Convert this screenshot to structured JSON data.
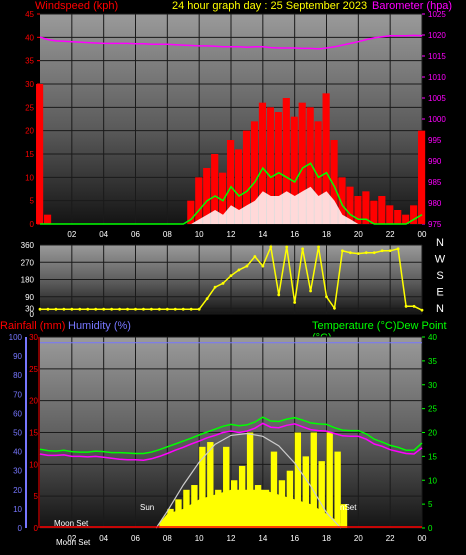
{
  "title": "24 hour graph day : 25 September 2023",
  "colors": {
    "wind": "#ff0000",
    "gust": "#00ff00",
    "avg": "#ffffff",
    "baro": "#ff00ff",
    "dir": "#ffff00",
    "rain": "#ff0000",
    "humidity": "#7777ff",
    "temp": "#00ff00",
    "dew": "#ff00ff",
    "sun": "#ffff00",
    "solar_max": "#cccccc",
    "compass": "#ffffff"
  },
  "chart_data": [
    {
      "type": "area",
      "id": "wind",
      "left_label": "Windspeed (kph)",
      "right_label": "Barometer (hpa)",
      "x_ticks": [
        "02",
        "04",
        "06",
        "08",
        "10",
        "12",
        "14",
        "16",
        "18",
        "20",
        "22",
        "00"
      ],
      "y_left_ticks": [
        0,
        5,
        10,
        15,
        20,
        25,
        30,
        35,
        40,
        45
      ],
      "y_left_range": [
        0,
        45
      ],
      "y_right_ticks": [
        975,
        980,
        985,
        990,
        995,
        1000,
        1005,
        1010,
        1015,
        1020,
        1025
      ],
      "y_right_range": [
        975,
        1025
      ],
      "hours": [
        0,
        0.5,
        1,
        1.5,
        2,
        2.5,
        3,
        3.5,
        4,
        4.5,
        5,
        5.5,
        6,
        6.5,
        7,
        7.5,
        8,
        8.5,
        9,
        9.5,
        10,
        10.5,
        11,
        11.5,
        12,
        12.5,
        13,
        13.5,
        14,
        14.5,
        15,
        15.5,
        16,
        16.5,
        17,
        17.5,
        18,
        18.5,
        19,
        19.5,
        20,
        20.5,
        21,
        21.5,
        22,
        22.5,
        23,
        23.5,
        24
      ],
      "wind_max": [
        30,
        2,
        0,
        0,
        0,
        0,
        0,
        0,
        0,
        0,
        0,
        0,
        0,
        0,
        0,
        0,
        0,
        0,
        0,
        5,
        10,
        12,
        15,
        11,
        18,
        16,
        20,
        22,
        26,
        25,
        24,
        27,
        23,
        26,
        25,
        22,
        28,
        18,
        10,
        8,
        6,
        7,
        5,
        6,
        4,
        3,
        2,
        4,
        20
      ],
      "gust": [
        0,
        0,
        0,
        0,
        0,
        0,
        0,
        0,
        0,
        0,
        0,
        0,
        0,
        0,
        0,
        0,
        0,
        0,
        0,
        1,
        3,
        5,
        6,
        5,
        8,
        6,
        7,
        9,
        12,
        10,
        11,
        10,
        9,
        12,
        13,
        10,
        11,
        8,
        4,
        2,
        1,
        1,
        0,
        0,
        0,
        0,
        0,
        1,
        2
      ],
      "avg": [
        0,
        0,
        0,
        0,
        0,
        0,
        0,
        0,
        0,
        0,
        0,
        0,
        0,
        0,
        0,
        0,
        0,
        0,
        0,
        0,
        1,
        2,
        3,
        2,
        4,
        3,
        4,
        5,
        7,
        6,
        6,
        7,
        6,
        7,
        8,
        6,
        7,
        5,
        2,
        1,
        0,
        0,
        0,
        0,
        0,
        0,
        0,
        0,
        0
      ],
      "baro": [
        1019.5,
        1018.9,
        1018.6,
        1018.5,
        1018.4,
        1018.3,
        1018.2,
        1018.1,
        1018.0,
        1018.0,
        1018.0,
        1018.0,
        1017.9,
        1017.9,
        1017.8,
        1017.8,
        1017.8,
        1017.7,
        1017.6,
        1017.5,
        1017.4,
        1017.4,
        1017.3,
        1017.2,
        1017.2,
        1017.2,
        1017.1,
        1017.2,
        1017.2,
        1017.0,
        1016.9,
        1016.9,
        1016.9,
        1016.8,
        1016.8,
        1016.7,
        1016.9,
        1017.2,
        1017.6,
        1018.0,
        1018.4,
        1018.9,
        1019.3,
        1019.6,
        1019.8,
        1019.8,
        1019.8,
        1019.9,
        1019.8
      ]
    },
    {
      "type": "scatter",
      "id": "direction",
      "y_left_ticks": [
        0,
        30,
        90,
        180,
        270,
        360
      ],
      "y_range": [
        0,
        360
      ],
      "compass": [
        "N",
        "W",
        "S",
        "E",
        "N"
      ],
      "hours": [
        0,
        0.5,
        1,
        1.5,
        2,
        2.5,
        3,
        3.5,
        4,
        4.5,
        5,
        5.5,
        6,
        6.5,
        7,
        7.5,
        8,
        8.5,
        9,
        9.5,
        10,
        10.5,
        11,
        11.5,
        12,
        12.5,
        13,
        13.5,
        14,
        14.5,
        15,
        15.5,
        16,
        16.5,
        17,
        17.5,
        18,
        18.5,
        19,
        19.5,
        20,
        20.5,
        21,
        21.5,
        22,
        22.5,
        23,
        23.5,
        24
      ],
      "values": [
        25,
        25,
        25,
        25,
        25,
        25,
        25,
        25,
        25,
        25,
        25,
        25,
        25,
        25,
        25,
        25,
        25,
        25,
        25,
        25,
        25,
        80,
        140,
        160,
        200,
        230,
        250,
        300,
        250,
        350,
        100,
        350,
        60,
        340,
        120,
        350,
        90,
        30,
        330,
        320,
        315,
        320,
        320,
        330,
        330,
        340,
        40,
        40,
        20
      ]
    },
    {
      "type": "line",
      "id": "temperature",
      "left_label": "Rainfall (mm)",
      "mid_label": "Humidity (%)",
      "right_label": "Temperature (°C)Dew Point (°C)",
      "x_ticks": [
        "02",
        "04",
        "06",
        "08",
        "10",
        "12",
        "14",
        "16",
        "18",
        "20",
        "22",
        "00"
      ],
      "y_humidity_ticks": [
        0,
        10,
        20,
        30,
        40,
        50,
        60,
        70,
        80,
        90,
        100
      ],
      "y_rain_ticks": [
        0,
        5,
        10,
        15,
        20,
        25,
        30
      ],
      "y_rain_range": [
        0,
        30
      ],
      "y_right_ticks": [
        0,
        5,
        10,
        15,
        20,
        25,
        30,
        35,
        40
      ],
      "y_right_range": [
        0,
        40
      ],
      "annotations": [
        "Moon Set",
        "Sun",
        "nSet",
        "Moon Set"
      ],
      "hours": [
        0,
        0.5,
        1,
        1.5,
        2,
        2.5,
        3,
        3.5,
        4,
        4.5,
        5,
        5.5,
        6,
        6.5,
        7,
        7.5,
        8,
        8.5,
        9,
        9.5,
        10,
        10.5,
        11,
        11.5,
        12,
        12.5,
        13,
        13.5,
        14,
        14.5,
        15,
        15.5,
        16,
        16.5,
        17,
        17.5,
        18,
        18.5,
        19,
        19.5,
        20,
        20.5,
        21,
        21.5,
        22,
        22.5,
        23,
        23.5,
        24
      ],
      "humidity": [
        97,
        97,
        97,
        97,
        97,
        97,
        97,
        97,
        97,
        97,
        97,
        97,
        97,
        97,
        97,
        97,
        97,
        97,
        97,
        97,
        97,
        97,
        97,
        97,
        97,
        97,
        97,
        97,
        97,
        97,
        97,
        97,
        97,
        97,
        97,
        97,
        97,
        97,
        97,
        97,
        97,
        97,
        97,
        97,
        97,
        97,
        97,
        97,
        97
      ],
      "temp": [
        16.5,
        16.2,
        16.1,
        16.3,
        16.0,
        15.9,
        15.9,
        16.1,
        16.0,
        15.8,
        15.8,
        15.7,
        15.6,
        15.6,
        15.9,
        16.4,
        17.0,
        17.6,
        18.2,
        18.8,
        19.5,
        20.1,
        20.7,
        21.3,
        21.7,
        21.4,
        21.6,
        22.2,
        23.2,
        22.4,
        22.3,
        22.8,
        23.1,
        22.6,
        22.0,
        21.8,
        21.7,
        21.0,
        20.5,
        20.4,
        20.4,
        19.7,
        18.6,
        18.0,
        17.3,
        16.9,
        16.3,
        16.3,
        17.8
      ],
      "dew": [
        15.5,
        15.2,
        15.2,
        15.3,
        15.0,
        15.0,
        14.9,
        15.0,
        14.8,
        14.6,
        14.4,
        14.3,
        14.3,
        14.2,
        14.5,
        15.0,
        15.6,
        16.3,
        16.9,
        17.6,
        18.2,
        18.9,
        19.4,
        20.0,
        20.3,
        20.0,
        20.3,
        20.9,
        21.9,
        21.1,
        21.0,
        21.5,
        21.8,
        21.2,
        20.6,
        20.4,
        20.3,
        19.8,
        19.3,
        19.2,
        19.2,
        18.6,
        17.6,
        17.1,
        16.4,
        16.0,
        15.6,
        15.5,
        16.8
      ],
      "rain": [
        0,
        0,
        0,
        0,
        0,
        0,
        0,
        0,
        0,
        0,
        0,
        0,
        0,
        0,
        0,
        0,
        0,
        0,
        0,
        0,
        0,
        0,
        0,
        0,
        0,
        0,
        0,
        0,
        0,
        0,
        0,
        0,
        0,
        0,
        0,
        0,
        0,
        0,
        0,
        0,
        0,
        0,
        0,
        0,
        0,
        0,
        0,
        0,
        0
      ],
      "solar_hours": [
        7.3,
        8,
        9,
        10,
        11,
        12,
        13,
        14,
        15,
        16,
        17,
        18,
        18.9
      ],
      "solar_max": [
        0,
        3.5,
        9,
        13.8,
        17.5,
        19.4,
        19.8,
        19.2,
        17.2,
        13.6,
        8.8,
        3.2,
        0
      ],
      "sun_hours": [
        7.5,
        8,
        8.5,
        9,
        9.5,
        10,
        10.5,
        11,
        11.5,
        12,
        12.5,
        13,
        13.5,
        14,
        14.5,
        15,
        15.5,
        16,
        16.5,
        17,
        17.5,
        18,
        18.5,
        18.9
      ],
      "sun": [
        1,
        4,
        6,
        8,
        9,
        17,
        18,
        8,
        17,
        10,
        13,
        20,
        9,
        8,
        16,
        10,
        12,
        20,
        15,
        20,
        14,
        20,
        16,
        5
      ]
    }
  ]
}
